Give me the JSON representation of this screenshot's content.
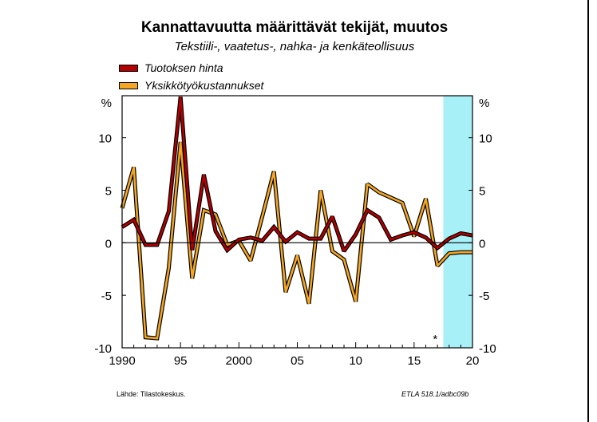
{
  "header": {
    "title": "Kannattavuutta määrittävät tekijät, muutos",
    "subtitle": "Tekstiili-, vaatetus-, nahka- ja kenkäteollisuus"
  },
  "legend": [
    {
      "label": "Tuotoksen hinta",
      "color": "#b30000"
    },
    {
      "label": "Yksikkötyökustannukset",
      "color": "#f5a623"
    }
  ],
  "footer": {
    "source": "Lähde:    Tilastokeskus.",
    "code": "ETLA 518.1/adbc09b"
  },
  "chart_data": {
    "type": "line",
    "title": "Kannattavuutta määrittävät tekijät, muutos",
    "subtitle": "Tekstiili-, vaatetus-, nahka- ja kenkäteollisuus",
    "x_tick_labels": [
      "1990",
      "95",
      "2000",
      "05",
      "10",
      "15",
      "20"
    ],
    "x_tick_years": [
      1990,
      1995,
      2000,
      2005,
      2010,
      2015,
      2020
    ],
    "y_tick_labels": [
      "10",
      "5",
      "0",
      "-5",
      "-10"
    ],
    "y_tick_values": [
      10,
      5,
      0,
      -5,
      -10
    ],
    "y_unit_label": "%",
    "xlim": [
      1990,
      2020
    ],
    "ylim": [
      -10,
      14
    ],
    "forecast_marker": "*",
    "forecast_start": 2017.5,
    "forecast_color": "#a8f0f8",
    "grid": false,
    "legend_position": "top-left",
    "x": [
      1990,
      1991,
      1992,
      1993,
      1994,
      1995,
      1996,
      1997,
      1998,
      1999,
      2000,
      2001,
      2002,
      2003,
      2004,
      2005,
      2006,
      2007,
      2008,
      2009,
      2010,
      2011,
      2012,
      2013,
      2014,
      2015,
      2016,
      2017,
      2018,
      2019,
      2020
    ],
    "series": [
      {
        "name": "Tuotoksen hinta",
        "color": "#b30000",
        "values": [
          1.5,
          2.2,
          -0.2,
          -0.2,
          3.0,
          13.9,
          -0.7,
          6.5,
          1.1,
          -0.7,
          0.3,
          0.5,
          0.2,
          1.5,
          0.1,
          1.0,
          0.4,
          0.4,
          2.5,
          -0.8,
          0.8,
          3.1,
          2.4,
          0.3,
          0.7,
          1.0,
          0.5,
          -0.5,
          0.4,
          0.9,
          0.7
        ]
      },
      {
        "name": "Yksikkötyökustannukset",
        "color": "#f5a623",
        "values": [
          3.3,
          7.2,
          -9.0,
          -9.1,
          -2.4,
          9.6,
          -3.4,
          3.1,
          2.7,
          -0.2,
          0.2,
          -1.7,
          2.5,
          6.8,
          -4.7,
          -1.2,
          -5.8,
          5.0,
          -0.8,
          -1.6,
          -5.6,
          5.6,
          4.8,
          4.3,
          3.8,
          0.6,
          4.2,
          -2.2,
          -1.0,
          -0.9,
          -0.9
        ]
      }
    ]
  }
}
